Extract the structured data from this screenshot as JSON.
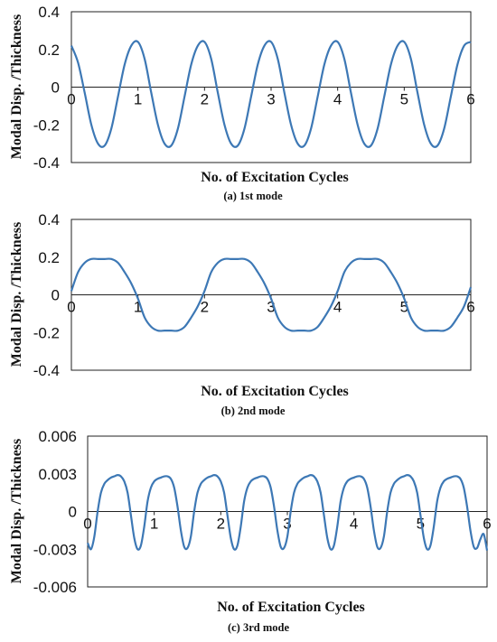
{
  "figure": {
    "panels_caption": [
      "(a) 1st mode",
      "(b) 2nd mode",
      "(c) 3rd mode"
    ]
  },
  "chart_data": [
    {
      "type": "line",
      "caption": "(a) 1st mode",
      "xlabel": "No. of Excitation Cycles",
      "ylabel": "Modal Disp. /Thickness",
      "xlim": [
        0,
        6
      ],
      "ylim": [
        -0.4,
        0.4
      ],
      "xticks": [
        "0",
        "1",
        "2",
        "3",
        "4",
        "5",
        "6"
      ],
      "yticks": [
        "0.4",
        "0.2",
        "0",
        "-0.2",
        "-0.4"
      ],
      "grid": false,
      "series": [
        {
          "color": "#3d78b5",
          "amplitude_max": 0.24,
          "amplitude_min": -0.32,
          "x": [
            0,
            0.1,
            0.2,
            0.3,
            0.4,
            0.5,
            0.6,
            0.7,
            0.8,
            0.9,
            1.0,
            1.1,
            1.2,
            1.3,
            1.4,
            1.5,
            1.6,
            1.7,
            1.8,
            1.9,
            2.0,
            2.1,
            2.2,
            2.3,
            2.4,
            2.5,
            2.6,
            2.7,
            2.8,
            2.9,
            3.0,
            3.1,
            3.2,
            3.3,
            3.4,
            3.5,
            3.6,
            3.7,
            3.8,
            3.9,
            4.0,
            4.1,
            4.2,
            4.3,
            4.4,
            4.5,
            4.6,
            4.7,
            4.8,
            4.9,
            5.0,
            5.1,
            5.2,
            5.3,
            5.4,
            5.5,
            5.6,
            5.7,
            5.8,
            5.9,
            6.0
          ],
          "y": [
            0.22,
            0.13,
            -0.03,
            -0.2,
            -0.3,
            -0.31,
            -0.22,
            -0.05,
            0.12,
            0.22,
            0.24,
            0.15,
            -0.03,
            -0.2,
            -0.3,
            -0.31,
            -0.22,
            -0.05,
            0.12,
            0.22,
            0.24,
            0.15,
            -0.03,
            -0.2,
            -0.3,
            -0.31,
            -0.22,
            -0.05,
            0.12,
            0.22,
            0.24,
            0.15,
            -0.03,
            -0.2,
            -0.3,
            -0.31,
            -0.22,
            -0.05,
            0.12,
            0.22,
            0.24,
            0.15,
            -0.03,
            -0.2,
            -0.3,
            -0.31,
            -0.22,
            -0.05,
            0.12,
            0.22,
            0.24,
            0.15,
            -0.03,
            -0.2,
            -0.3,
            -0.31,
            -0.22,
            -0.05,
            0.12,
            0.22,
            0.24
          ]
        }
      ]
    },
    {
      "type": "line",
      "caption": "(b) 2nd mode",
      "xlabel": "No. of Excitation Cycles",
      "ylabel": "Modal Disp. /Thickness",
      "xlim": [
        0,
        6
      ],
      "ylim": [
        -0.4,
        0.4
      ],
      "xticks": [
        "0",
        "1",
        "2",
        "3",
        "4",
        "5",
        "6"
      ],
      "yticks": [
        "0.4",
        "0.2",
        "0",
        "-0.2",
        "-0.4"
      ],
      "grid": false,
      "series": [
        {
          "color": "#3d78b5",
          "amplitude_max": 0.19,
          "amplitude_min": -0.19,
          "x": [
            0,
            0.1,
            0.2,
            0.3,
            0.4,
            0.5,
            0.6,
            0.7,
            0.8,
            0.9,
            1.0,
            1.1,
            1.2,
            1.3,
            1.4,
            1.5,
            1.6,
            1.7,
            1.8,
            1.9,
            2.0,
            2.1,
            2.2,
            2.3,
            2.4,
            2.5,
            2.6,
            2.7,
            2.8,
            2.9,
            3.0,
            3.1,
            3.2,
            3.3,
            3.4,
            3.5,
            3.6,
            3.7,
            3.8,
            3.9,
            4.0,
            4.1,
            4.2,
            4.3,
            4.4,
            4.5,
            4.6,
            4.7,
            4.8,
            4.9,
            5.0,
            5.1,
            5.2,
            5.3,
            5.4,
            5.5,
            5.6,
            5.7,
            5.8,
            5.9,
            6.0
          ],
          "y": [
            0.02,
            0.12,
            0.17,
            0.19,
            0.19,
            0.19,
            0.19,
            0.17,
            0.12,
            0.06,
            -0.02,
            -0.12,
            -0.17,
            -0.19,
            -0.19,
            -0.19,
            -0.19,
            -0.17,
            -0.12,
            -0.06,
            0.02,
            0.12,
            0.17,
            0.19,
            0.19,
            0.19,
            0.19,
            0.17,
            0.12,
            0.06,
            -0.02,
            -0.12,
            -0.17,
            -0.19,
            -0.19,
            -0.19,
            -0.19,
            -0.17,
            -0.12,
            -0.06,
            0.02,
            0.12,
            0.17,
            0.19,
            0.19,
            0.19,
            0.19,
            0.17,
            0.12,
            0.06,
            -0.02,
            -0.12,
            -0.17,
            -0.19,
            -0.19,
            -0.19,
            -0.19,
            -0.17,
            -0.12,
            -0.06,
            0.04
          ]
        }
      ]
    },
    {
      "type": "line",
      "caption": "(c) 3rd mode",
      "xlabel": "No. of Excitation Cycles",
      "ylabel": "Modal Disp. /Thickness",
      "xlim": [
        0,
        6
      ],
      "ylim": [
        -0.006,
        0.006
      ],
      "xticks": [
        "0",
        "1",
        "2",
        "3",
        "4",
        "5",
        "6"
      ],
      "yticks": [
        "0.006",
        "0.003",
        "0",
        "-0.003",
        "-0.006"
      ],
      "grid": false,
      "series": [
        {
          "color": "#3d78b5",
          "amplitude_max": 0.0029,
          "amplitude_min": -0.0031,
          "x": [
            0,
            0.05,
            0.1,
            0.15,
            0.2,
            0.25,
            0.3,
            0.35,
            0.4,
            0.45,
            0.5,
            0.55,
            0.6,
            0.65,
            0.7,
            0.75,
            0.8,
            0.85,
            0.9,
            0.95,
            1.0,
            1.05,
            1.1,
            1.15,
            1.2,
            1.25,
            1.3,
            1.35,
            1.4,
            1.45,
            1.5,
            1.55,
            1.6,
            1.65,
            1.7,
            1.75,
            1.8,
            1.85,
            1.9,
            1.95,
            2.0,
            2.05,
            2.1,
            2.15,
            2.2,
            2.25,
            2.3,
            2.35,
            2.4,
            2.45,
            2.5,
            2.55,
            2.6,
            2.65,
            2.7,
            2.75,
            2.8,
            2.85,
            2.9,
            2.95,
            3.0,
            3.05,
            3.1,
            3.15,
            3.2,
            3.25,
            3.3,
            3.35,
            3.4,
            3.45,
            3.5,
            3.55,
            3.6,
            3.65,
            3.7,
            3.75,
            3.8,
            3.85,
            3.9,
            3.95,
            4.0,
            4.05,
            4.1,
            4.15,
            4.2,
            4.25,
            4.3,
            4.35,
            4.4,
            4.45,
            4.5,
            4.55,
            4.6,
            4.65,
            4.7,
            4.75,
            4.8,
            4.85,
            4.9,
            4.95,
            5.0,
            5.05,
            5.1,
            5.15,
            5.2,
            5.25,
            5.3,
            5.35,
            5.4,
            5.45,
            5.5,
            5.55,
            5.6,
            5.65,
            5.7,
            5.75,
            5.8,
            5.85,
            5.9,
            5.95,
            6.0
          ],
          "y": [
            -0.0025,
            -0.003,
            -0.002,
            0.0,
            0.0015,
            0.0022,
            0.0025,
            0.0027,
            0.0028,
            0.0029,
            0.0028,
            0.0024,
            0.0015,
            -0.0003,
            -0.0021,
            -0.003,
            -0.0027,
            -0.0012,
            0.0008,
            0.0019,
            0.0024,
            0.0026,
            0.0027,
            0.0028,
            0.0028,
            0.0026,
            0.0019,
            0.0004,
            -0.0015,
            -0.0028,
            -0.0029,
            -0.002,
            0.0,
            0.0015,
            0.0022,
            0.0025,
            0.0027,
            0.0028,
            0.0029,
            0.0028,
            0.0024,
            0.0015,
            -0.0003,
            -0.0021,
            -0.003,
            -0.0027,
            -0.0012,
            0.0008,
            0.0019,
            0.0024,
            0.0026,
            0.0027,
            0.0028,
            0.0028,
            0.0026,
            0.0019,
            0.0004,
            -0.0015,
            -0.0028,
            -0.0029,
            -0.002,
            0.0,
            0.0015,
            0.0022,
            0.0025,
            0.0027,
            0.0028,
            0.0029,
            0.0028,
            0.0024,
            0.0015,
            -0.0003,
            -0.0021,
            -0.003,
            -0.0027,
            -0.0012,
            0.0008,
            0.0019,
            0.0024,
            0.0026,
            0.0027,
            0.0028,
            0.0028,
            0.0026,
            0.0019,
            0.0004,
            -0.0015,
            -0.0028,
            -0.0029,
            -0.002,
            0.0,
            0.0015,
            0.0022,
            0.0025,
            0.0027,
            0.0028,
            0.0029,
            0.0028,
            0.0024,
            0.0015,
            -0.0003,
            -0.0021,
            -0.003,
            -0.0027,
            -0.0012,
            0.0008,
            0.0019,
            0.0024,
            0.0026,
            0.0027,
            0.0028,
            0.0028,
            0.0026,
            0.0019,
            0.0004,
            -0.0015,
            -0.0028,
            -0.0029,
            -0.0022,
            -0.0018,
            -0.0031
          ]
        }
      ]
    }
  ]
}
